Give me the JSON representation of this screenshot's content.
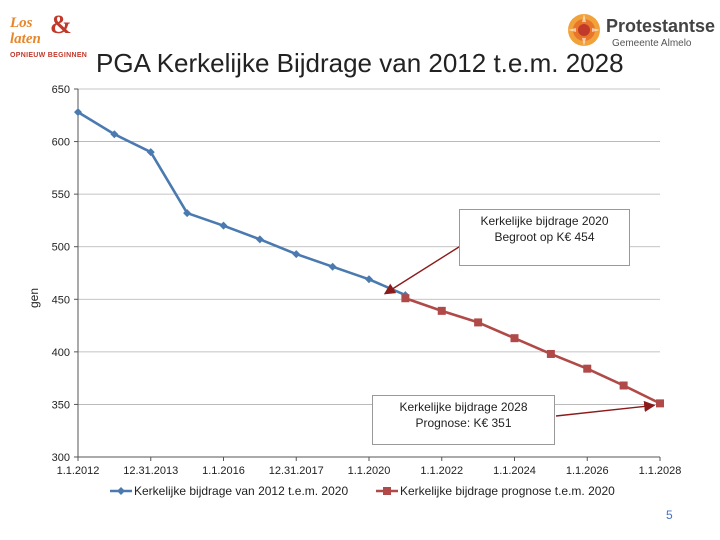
{
  "header": {
    "title": "PGA Kerkelijke Bijdrage van 2012 t.e.m. 2028",
    "logo_left": {
      "line1": "Los",
      "line2": "laten",
      "symbol": "&",
      "tagline": "OPNIEUW BEGINNEN"
    },
    "logo_right": {
      "name": "Protestantse",
      "place": "Gemeente Almelo"
    }
  },
  "page_number": "5",
  "colors": {
    "series1": "#4a7ab0",
    "series2": "#b04a48",
    "arrow": "#8b1a1a",
    "grid": "#b0b0b0"
  },
  "callouts": {
    "top": {
      "line1": "Kerkelijke bijdrage 2020",
      "line2": "Begroot op K€ 454"
    },
    "bottom": {
      "line1": "Kerkelijke bijdrage 2028",
      "line2": "Prognose: K€ 351"
    }
  },
  "chart_data": {
    "type": "line",
    "title": "PGA Kerkelijke Bijdrage van 2012 t.e.m. 2028",
    "xlabel": "",
    "ylabel": "gen",
    "ylim": [
      300,
      650
    ],
    "xlim": [
      2012.0,
      2028.0
    ],
    "yticks": [
      300,
      350,
      400,
      450,
      500,
      550,
      600,
      650
    ],
    "xticks": [
      {
        "value": 2012.0,
        "label": "1.1.2012"
      },
      {
        "value": 2014.0,
        "label": "12.31.2013"
      },
      {
        "value": 2016.0,
        "label": "1.1.2016"
      },
      {
        "value": 2018.0,
        "label": "12.31.2017"
      },
      {
        "value": 2020.0,
        "label": "1.1.2020"
      },
      {
        "value": 2022.0,
        "label": "1.1.2022"
      },
      {
        "value": 2024.0,
        "label": "1.1.2024"
      },
      {
        "value": 2026.0,
        "label": "1.1.2026"
      },
      {
        "value": 2028.0,
        "label": "1.1.2028"
      }
    ],
    "legend_position": "bottom",
    "series": [
      {
        "name": "Kerkelijke bijdrage van 2012 t.e.m. 2020",
        "marker": "diamond",
        "color": "#4a7ab0",
        "x": [
          2012.0,
          2013.0,
          2014.0,
          2015.0,
          2016.0,
          2017.0,
          2018.0,
          2019.0,
          2020.0,
          2021.0
        ],
        "y": [
          628,
          607,
          590,
          532,
          520,
          507,
          493,
          481,
          469,
          454
        ]
      },
      {
        "name": "Kerkelijke bijdrage prognose t.e.m. 2020",
        "marker": "square",
        "color": "#b04a48",
        "x": [
          2021.0,
          2022.0,
          2023.0,
          2024.0,
          2025.0,
          2026.0,
          2027.0,
          2028.0
        ],
        "y": [
          451,
          439,
          428,
          413,
          398,
          384,
          368,
          351
        ]
      }
    ]
  }
}
